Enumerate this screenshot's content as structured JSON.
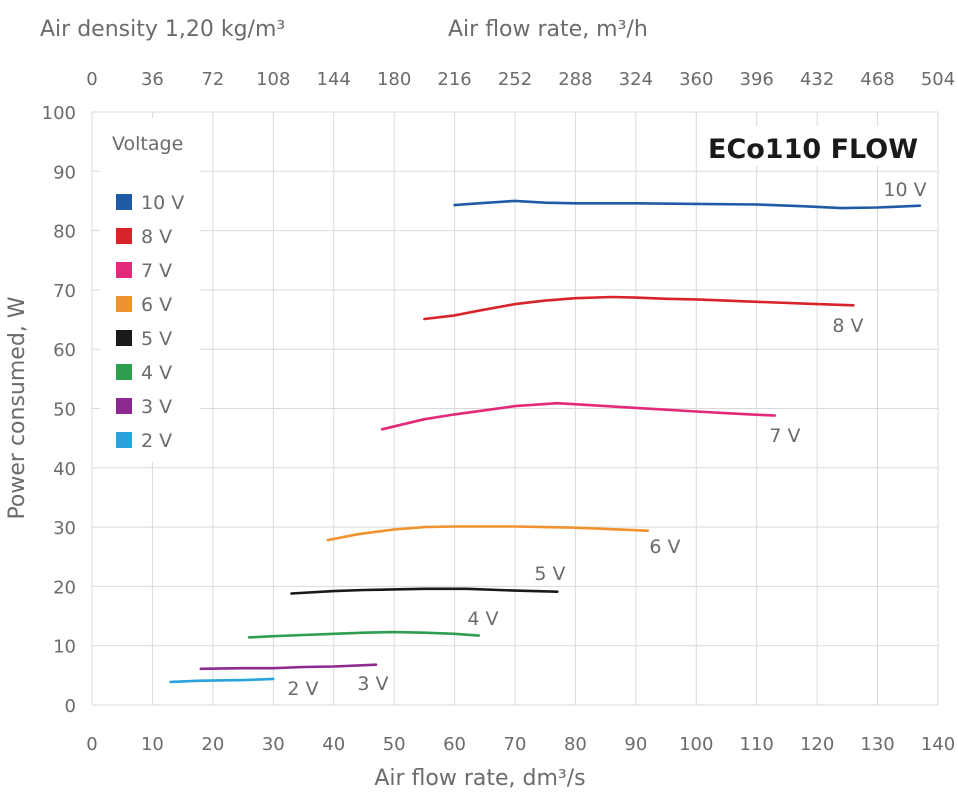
{
  "chart_data": {
    "type": "line",
    "title": "ECo110 FLOW",
    "top_left_label": "Air density 1,20 kg/m³",
    "xlabel": "Air flow rate, dm³/s",
    "x2label": "Air flow rate, m³/h",
    "ylabel": "Power consumed, W",
    "xlim": [
      0,
      140
    ],
    "ylim": [
      0,
      100
    ],
    "x_ticks": [
      "0",
      "10",
      "20",
      "30",
      "40",
      "50",
      "60",
      "70",
      "80",
      "90",
      "100",
      "110",
      "120",
      "130",
      "140"
    ],
    "x2_ticks": [
      "0",
      "36",
      "72",
      "108",
      "144",
      "180",
      "216",
      "252",
      "288",
      "324",
      "360",
      "396",
      "432",
      "468",
      "504"
    ],
    "y_ticks": [
      "0",
      "10",
      "20",
      "30",
      "40",
      "50",
      "60",
      "70",
      "80",
      "90",
      "100"
    ],
    "grid": true,
    "legend_title": "Voltage",
    "legend_position": "top-left",
    "series": [
      {
        "name": "10 V",
        "color": "#1f5aa6",
        "label": "10 V",
        "x": [
          60,
          64,
          70,
          75,
          80,
          90,
          100,
          110,
          118,
          124,
          130,
          137
        ],
        "y": [
          84.3,
          84.6,
          85.0,
          84.7,
          84.6,
          84.6,
          84.5,
          84.4,
          84.1,
          83.8,
          83.9,
          84.2
        ]
      },
      {
        "name": "8 V",
        "color": "#d8232a",
        "label": "8 V",
        "x": [
          55,
          60,
          64,
          70,
          75,
          80,
          86,
          90,
          95,
          100,
          110,
          120,
          126
        ],
        "y": [
          65.1,
          65.7,
          66.5,
          67.6,
          68.2,
          68.6,
          68.8,
          68.7,
          68.5,
          68.4,
          68.0,
          67.6,
          67.4
        ]
      },
      {
        "name": "7 V",
        "color": "#e2297a",
        "label": "7 V",
        "x": [
          48,
          55,
          60,
          65,
          70,
          77,
          85,
          90,
          95,
          100,
          105,
          113
        ],
        "y": [
          46.5,
          48.2,
          49.0,
          49.7,
          50.4,
          50.9,
          50.4,
          50.1,
          49.8,
          49.5,
          49.2,
          48.8
        ]
      },
      {
        "name": "6 V",
        "color": "#f0922e",
        "label": "6 V",
        "x": [
          39,
          44,
          50,
          55,
          60,
          70,
          75,
          80,
          85,
          92
        ],
        "y": [
          27.8,
          28.8,
          29.6,
          30.0,
          30.1,
          30.1,
          30.0,
          29.9,
          29.7,
          29.4
        ]
      },
      {
        "name": "5 V",
        "color": "#1a1a1a",
        "label": "5 V",
        "x": [
          33,
          40,
          45,
          55,
          62,
          70,
          77
        ],
        "y": [
          18.8,
          19.2,
          19.4,
          19.6,
          19.6,
          19.3,
          19.1
        ]
      },
      {
        "name": "4 V",
        "color": "#2e9e4f",
        "label": "4 V",
        "x": [
          26,
          30,
          35,
          40,
          45,
          50,
          55,
          60,
          64
        ],
        "y": [
          11.4,
          11.6,
          11.8,
          12.0,
          12.2,
          12.3,
          12.2,
          12.0,
          11.7
        ]
      },
      {
        "name": "3 V",
        "color": "#8c2a8f",
        "label": "3 V",
        "x": [
          18,
          25,
          30,
          35,
          40,
          47
        ],
        "y": [
          6.1,
          6.2,
          6.2,
          6.4,
          6.5,
          6.8
        ]
      },
      {
        "name": "2 V",
        "color": "#29a3dd",
        "label": "2 V",
        "x": [
          13,
          18,
          25,
          30
        ],
        "y": [
          3.9,
          4.1,
          4.2,
          4.4
        ]
      }
    ]
  }
}
